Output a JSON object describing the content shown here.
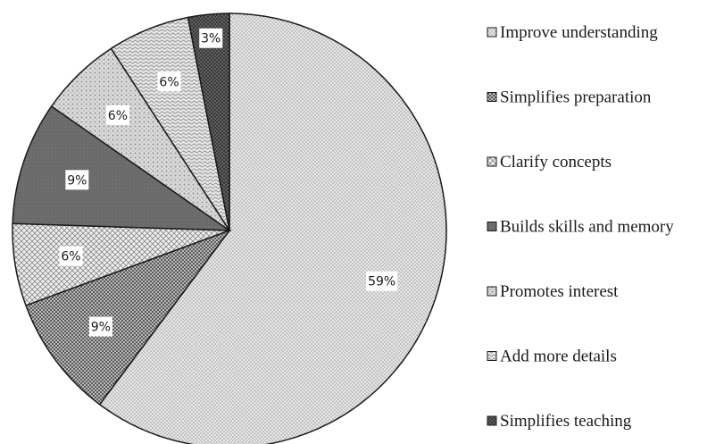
{
  "chart_data": {
    "type": "pie",
    "title": "",
    "legend_position": "right",
    "slices": [
      {
        "label": "Improve understanding",
        "value": 59,
        "value_label": "59%",
        "color": "#dcdcdc",
        "pattern": "fine-dots"
      },
      {
        "label": "Simplifies preparation",
        "value": 9,
        "value_label": "9%",
        "color": "#8c8c8c",
        "pattern": "dense-dots"
      },
      {
        "label": "Clarify concepts",
        "value": 6,
        "value_label": "6%",
        "color": "#d6d6d6",
        "pattern": "crosshatch"
      },
      {
        "label": "Builds skills and memory",
        "value": 9,
        "value_label": "9%",
        "color": "#6e6e6e",
        "pattern": "solid"
      },
      {
        "label": "Promotes interest",
        "value": 6,
        "value_label": "6%",
        "color": "#bdbdbd",
        "pattern": "light-dots"
      },
      {
        "label": "Add more details",
        "value": 6,
        "value_label": "6%",
        "color": "#cfcfcf",
        "pattern": "wave"
      },
      {
        "label": "Simplifies teaching",
        "value": 3,
        "value_label": "3%",
        "color": "#4a4a4a",
        "pattern": "dark-dots"
      }
    ]
  }
}
